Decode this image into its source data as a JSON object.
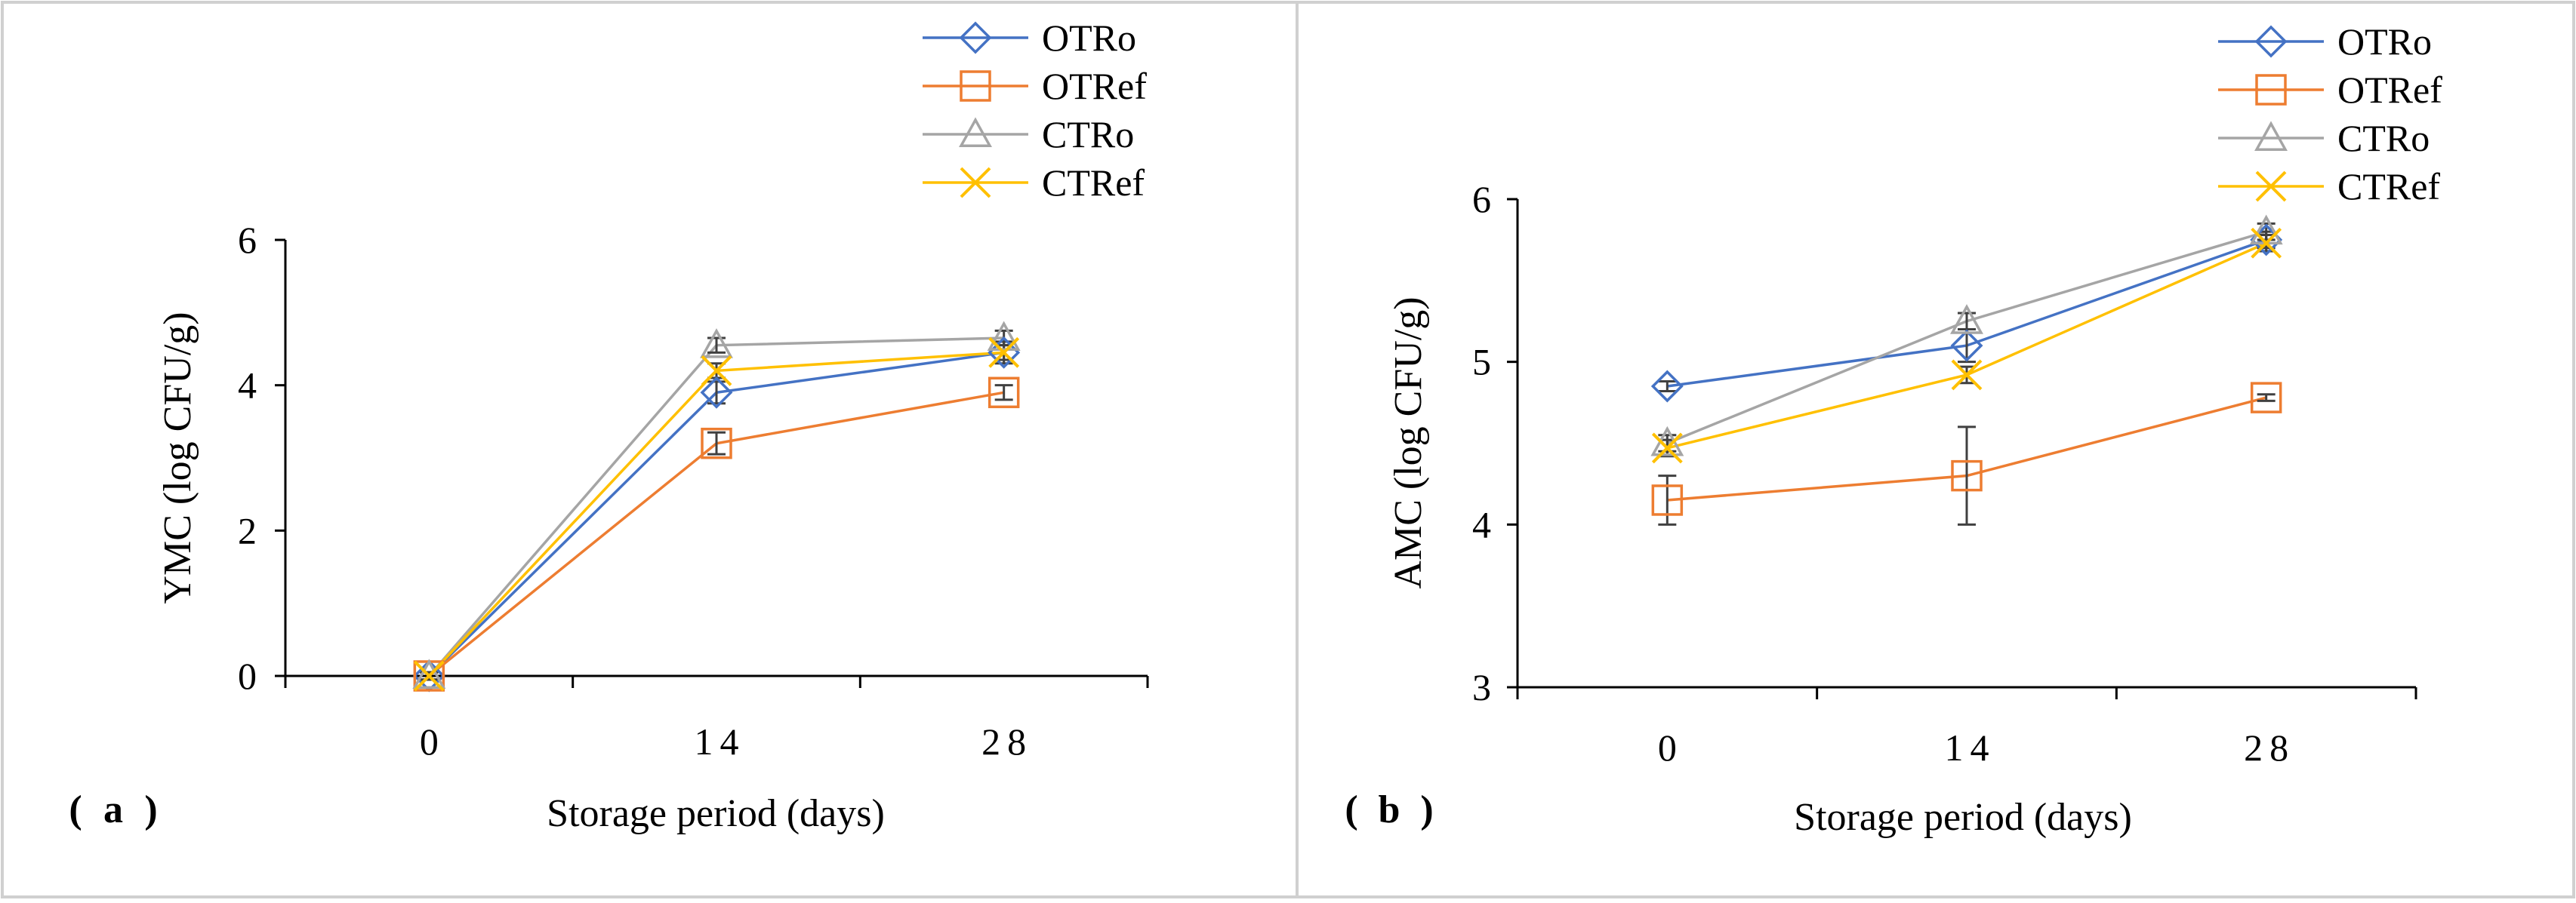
{
  "chart_data": [
    {
      "type": "line",
      "panel_label": "(a)",
      "panel_label_parts": [
        "(",
        "a",
        ")"
      ],
      "xlabel": "Storage period (days)",
      "ylabel": "YMC (log CFU/g)",
      "categories": [
        "0",
        "14",
        "28"
      ],
      "category_glyphs": [
        [
          "0"
        ],
        [
          "1",
          "4"
        ],
        [
          "2",
          "8"
        ]
      ],
      "ylim": [
        0,
        6
      ],
      "yticks": [
        0,
        2,
        4,
        6
      ],
      "legend_position": "top-right",
      "series": [
        {
          "name": "OTRo",
          "marker": "diamond",
          "color": "#4472C4",
          "values": [
            0,
            3.9,
            4.45
          ],
          "errors": [
            0.05,
            0.15,
            0.15
          ]
        },
        {
          "name": "OTRef",
          "marker": "square",
          "color": "#ED7D31",
          "values": [
            0,
            3.2,
            3.9
          ],
          "errors": [
            0.05,
            0.15,
            0.1
          ]
        },
        {
          "name": "CTRo",
          "marker": "triangle",
          "color": "#A5A5A5",
          "values": [
            0,
            4.55,
            4.65
          ],
          "errors": [
            0.05,
            0.1,
            0.1
          ]
        },
        {
          "name": "CTRef",
          "marker": "x",
          "color": "#FFC000",
          "values": [
            0,
            4.2,
            4.45
          ],
          "errors": [
            0.05,
            0.1,
            0.1
          ]
        }
      ]
    },
    {
      "type": "line",
      "panel_label": "(b)",
      "panel_label_parts": [
        "(",
        "b",
        ")"
      ],
      "xlabel": "Storage period (days)",
      "ylabel": "AMC (log CFU/g)",
      "categories": [
        "0",
        "14",
        "28"
      ],
      "category_glyphs": [
        [
          "0"
        ],
        [
          "1",
          "4"
        ],
        [
          "2",
          "8"
        ]
      ],
      "ylim": [
        3,
        6
      ],
      "yticks": [
        3,
        4,
        5,
        6
      ],
      "legend_position": "top-right",
      "series": [
        {
          "name": "OTRo",
          "marker": "diamond",
          "color": "#4472C4",
          "values": [
            4.85,
            5.1,
            5.75
          ],
          "errors": [
            0.03,
            0.1,
            0.05
          ]
        },
        {
          "name": "OTRef",
          "marker": "square",
          "color": "#ED7D31",
          "values": [
            4.15,
            4.3,
            4.78
          ],
          "errors": [
            0.15,
            0.3,
            0.02
          ]
        },
        {
          "name": "CTRo",
          "marker": "triangle",
          "color": "#A5A5A5",
          "values": [
            4.5,
            5.25,
            5.8
          ],
          "errors": [
            0.05,
            0.05,
            0.05
          ]
        },
        {
          "name": "CTRef",
          "marker": "x",
          "color": "#FFC000",
          "values": [
            4.47,
            4.92,
            5.73
          ],
          "errors": [
            0.05,
            0.05,
            0.05
          ]
        }
      ]
    }
  ]
}
